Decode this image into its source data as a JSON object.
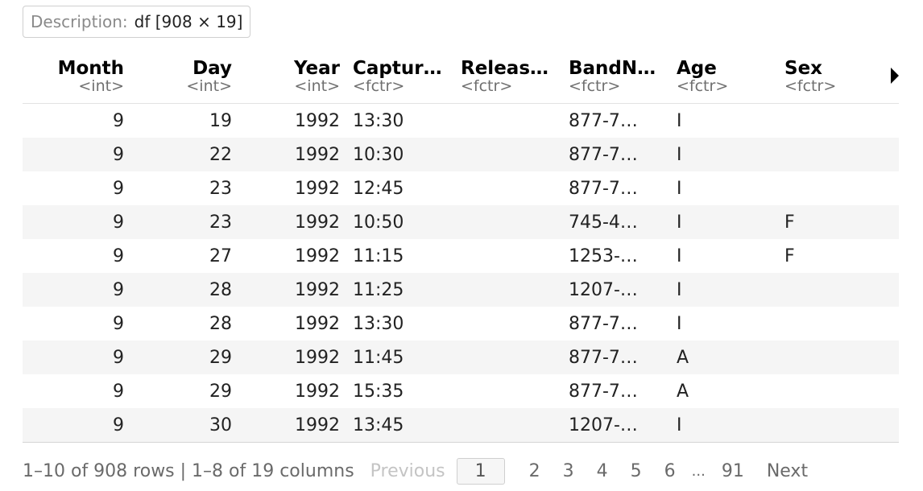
{
  "description": {
    "label": "Description:",
    "value": "df [908 × 19]"
  },
  "columns": [
    {
      "name": "Month",
      "type": "<int>",
      "numeric": true
    },
    {
      "name": "Day",
      "type": "<int>",
      "numeric": true
    },
    {
      "name": "Year",
      "type": "<int>",
      "numeric": true
    },
    {
      "name": "Captur…",
      "type": "<fctr>",
      "numeric": false
    },
    {
      "name": "Releas…",
      "type": "<fctr>",
      "numeric": false
    },
    {
      "name": "BandN…",
      "type": "<fctr>",
      "numeric": false
    },
    {
      "name": "Age",
      "type": "<fctr>",
      "numeric": false
    },
    {
      "name": "Sex",
      "type": "<fctr>",
      "numeric": false
    }
  ],
  "rows": [
    [
      "9",
      "19",
      "1992",
      "13:30",
      "",
      "877-7…",
      "I",
      ""
    ],
    [
      "9",
      "22",
      "1992",
      "10:30",
      "",
      "877-7…",
      "I",
      ""
    ],
    [
      "9",
      "23",
      "1992",
      "12:45",
      "",
      "877-7…",
      "I",
      ""
    ],
    [
      "9",
      "23",
      "1992",
      "10:50",
      "",
      "745-4…",
      "I",
      "F"
    ],
    [
      "9",
      "27",
      "1992",
      "11:15",
      "",
      "1253-…",
      "I",
      "F"
    ],
    [
      "9",
      "28",
      "1992",
      "11:25",
      "",
      "1207-…",
      "I",
      ""
    ],
    [
      "9",
      "28",
      "1992",
      "13:30",
      "",
      "877-7…",
      "I",
      ""
    ],
    [
      "9",
      "29",
      "1992",
      "11:45",
      "",
      "877-7…",
      "A",
      ""
    ],
    [
      "9",
      "29",
      "1992",
      "15:35",
      "",
      "877-7…",
      "A",
      ""
    ],
    [
      "9",
      "30",
      "1992",
      "13:45",
      "",
      "1207-…",
      "I",
      ""
    ]
  ],
  "footer": {
    "info": "1–10 of 908 rows | 1–8 of 19 columns",
    "previous": "Previous",
    "pages": [
      "1",
      "2",
      "3",
      "4",
      "5",
      "6"
    ],
    "ellipsis": "...",
    "last_page": "91",
    "next": "Next",
    "current_page": "1"
  },
  "more_columns_icon": "triangle-right-icon"
}
